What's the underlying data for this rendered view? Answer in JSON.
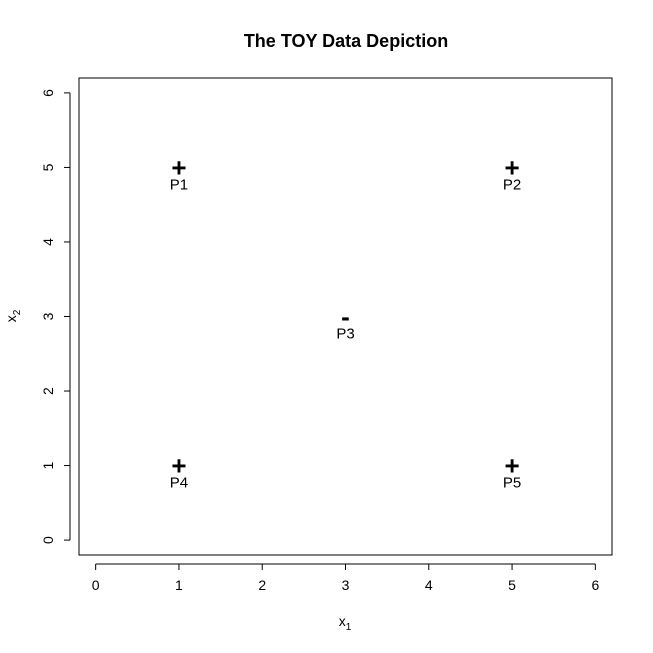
{
  "chart_data": {
    "type": "scatter",
    "title": "The TOY Data Depiction",
    "xlabel": {
      "base": "x",
      "sub": "1"
    },
    "ylabel": {
      "base": "x",
      "sub": "2"
    },
    "xlim": [
      -0.2,
      6.2
    ],
    "ylim": [
      -0.2,
      6.2
    ],
    "xticks": [
      0,
      1,
      2,
      3,
      4,
      5,
      6
    ],
    "yticks": [
      0,
      1,
      2,
      3,
      4,
      5,
      6
    ],
    "grid": false,
    "points": [
      {
        "label": "P1",
        "x": 1,
        "y": 5,
        "symbol": "+"
      },
      {
        "label": "P2",
        "x": 5,
        "y": 5,
        "symbol": "+"
      },
      {
        "label": "P3",
        "x": 3,
        "y": 3,
        "symbol": "-"
      },
      {
        "label": "P4",
        "x": 1,
        "y": 1,
        "symbol": "+"
      },
      {
        "label": "P5",
        "x": 5,
        "y": 1,
        "symbol": "+"
      }
    ]
  }
}
